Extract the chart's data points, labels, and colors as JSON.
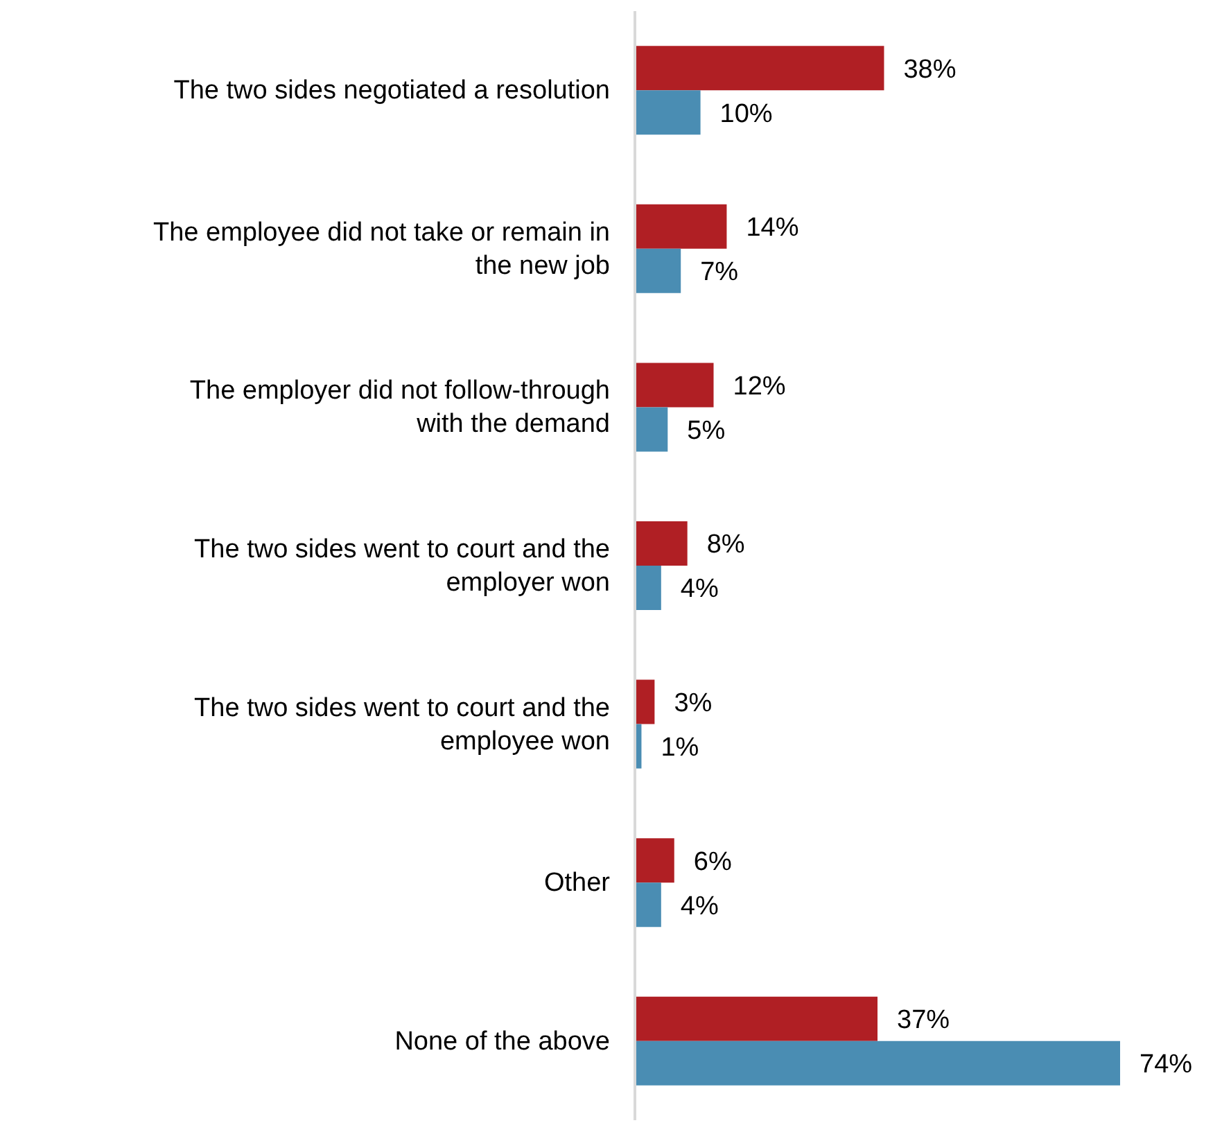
{
  "chart_data": {
    "type": "bar",
    "orientation": "horizontal",
    "categories": [
      "The two sides negotiated a resolution",
      "The employee did not take or remain in the new job",
      "The employer did not follow-through with the demand",
      "The two sides went to court and the employer won",
      "The two sides went to court and the employee won",
      "Other",
      "None of the above"
    ],
    "series": [
      {
        "color": "#b01f24",
        "values": [
          38,
          14,
          12,
          8,
          3,
          6,
          37
        ],
        "value_labels": [
          "38%",
          "14%",
          "12%",
          "8%",
          "3%",
          "6%",
          "37%"
        ]
      },
      {
        "color": "#4a8db3",
        "values": [
          10,
          7,
          5,
          4,
          1,
          4,
          74
        ],
        "value_labels": [
          "10%",
          "7%",
          "5%",
          "4%",
          "1%",
          "4%",
          "74%"
        ]
      }
    ]
  }
}
